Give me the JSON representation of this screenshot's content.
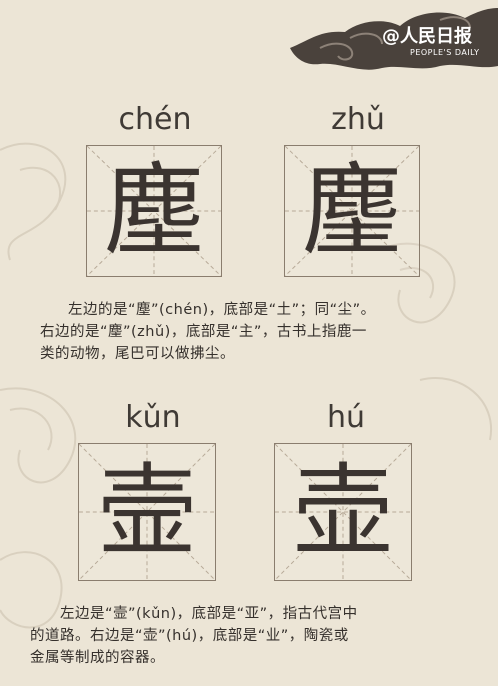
{
  "brand": {
    "logo_text": "@人民日报",
    "logo_sub": "PEOPLE'S DAILY"
  },
  "section1": {
    "char1": {
      "pinyin": "chén",
      "hanzi": "塵"
    },
    "char2": {
      "pinyin": "zhǔ",
      "hanzi": "麈"
    },
    "description": [
      "左边的是“塵”(chén)，底部是“土”；同“尘”。",
      "右边的是“麈”(zhǔ)，底部是“主”，古书上指鹿一",
      "类的动物，尾巴可以做拂尘。"
    ]
  },
  "section2": {
    "char1": {
      "pinyin": "kǔn",
      "hanzi": "壸"
    },
    "char2": {
      "pinyin": "hú",
      "hanzi": "壶"
    },
    "description": [
      "左边是“壸”(kǔn)，底部是“亚”，指古代宫中",
      "的道路。右边是“壶”(hú)，底部是“业”，陶瓷或",
      "金属等制成的容器。"
    ]
  },
  "colors": {
    "background": "#ece5d6",
    "grid_border": "#8a7d6e",
    "grid_dash": "#b7aa98",
    "text": "#35302c",
    "banner": "#4a423c"
  }
}
